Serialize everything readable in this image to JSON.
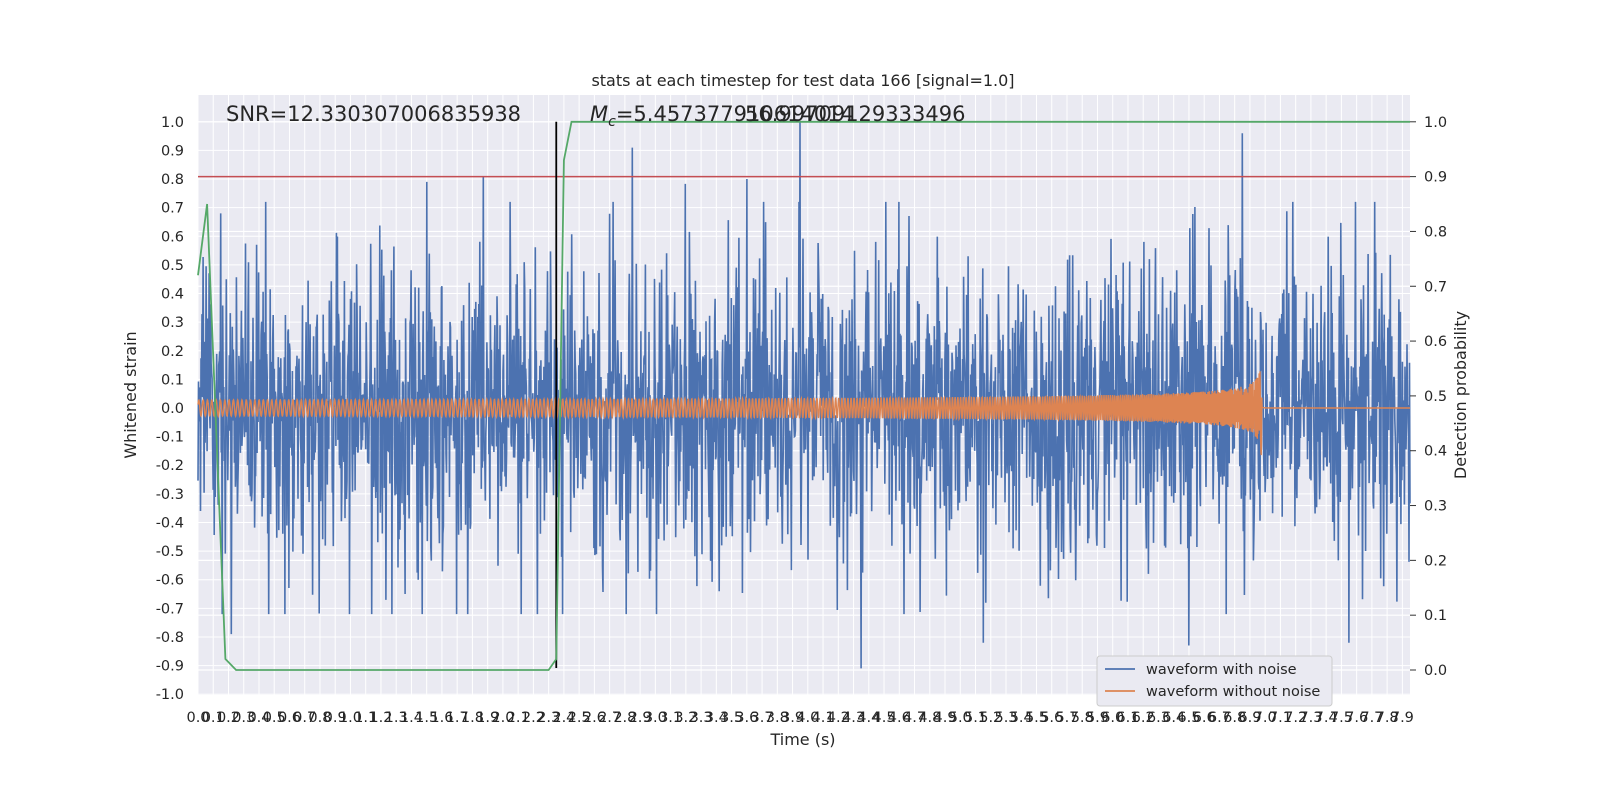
{
  "chart_data": {
    "type": "line",
    "title": "stats at each timestep for test data 166 [signal=1.0]",
    "xlabel": "Time (s)",
    "ylabel_left": "Whitened strain",
    "ylabel_right": "Detection probability",
    "xlim": [
      0.0,
      7.95
    ],
    "ylim_left": [
      -1.0,
      1.0
    ],
    "ylim_right": [
      0.0,
      1.0
    ],
    "x_ticks": [
      "0.0",
      "0.1",
      "0.2",
      "0.3",
      "0.4",
      "0.5",
      "0.6",
      "0.7",
      "0.8",
      "0.9",
      "1.0",
      "1.1",
      "1.2",
      "1.3",
      "1.4",
      "1.5",
      "1.6",
      "1.7",
      "1.8",
      "1.9",
      "2.0",
      "2.1",
      "2.2",
      "2.3",
      "2.4",
      "2.5",
      "2.6",
      "2.7",
      "2.8",
      "2.9",
      "3.0",
      "3.1",
      "3.2",
      "3.3",
      "3.4",
      "3.5",
      "3.6",
      "3.7",
      "3.8",
      "3.9",
      "4.0",
      "4.1",
      "4.2",
      "4.3",
      "4.4",
      "4.5",
      "4.6",
      "4.7",
      "4.8",
      "4.9",
      "5.0",
      "5.1",
      "5.2",
      "5.3",
      "5.4",
      "5.5",
      "5.6",
      "5.7",
      "5.8",
      "5.9",
      "6.0",
      "6.1",
      "6.2",
      "6.3",
      "6.4",
      "6.5",
      "6.6",
      "6.7",
      "6.8",
      "6.9",
      "7.0",
      "7.1",
      "7.2",
      "7.3",
      "7.4",
      "7.5",
      "7.6",
      "7.7",
      "7.8",
      "7.9"
    ],
    "y_ticks_left": [
      "-1.0",
      "-0.9",
      "-0.8",
      "-0.7",
      "-0.6",
      "-0.5",
      "-0.4",
      "-0.3",
      "-0.2",
      "-0.1",
      "0.0",
      "0.1",
      "0.2",
      "0.3",
      "0.4",
      "0.5",
      "0.6",
      "0.7",
      "0.8",
      "0.9",
      "1.0"
    ],
    "y_ticks_right": [
      "0.0",
      "0.1",
      "0.2",
      "0.3",
      "0.4",
      "0.5",
      "0.6",
      "0.7",
      "0.8",
      "0.9",
      "1.0"
    ],
    "annotations": {
      "snr": "SNR=12.330307006835938",
      "mc_symbol": "M",
      "mc_sub": "c",
      "mc_value": "=5.457377910614014",
      "mc_overlap": "56.99709129333496"
    },
    "threshold": {
      "value": 0.9,
      "axis": "right",
      "color": "#c44e52"
    },
    "detection_time": {
      "x": 2.35,
      "color": "#000000"
    },
    "series": [
      {
        "name": "waveform with noise",
        "axis": "left",
        "color": "#4c72b0",
        "noise_sigma": 0.2,
        "visible_peaks": [
          [
            0.15,
            0.68
          ],
          [
            1.5,
            0.79
          ],
          [
            1.87,
            0.81
          ],
          [
            2.85,
            0.91
          ],
          [
            3.6,
            0.8
          ],
          [
            3.95,
            1.0
          ],
          [
            6.85,
            0.96
          ],
          [
            4.35,
            -0.91
          ],
          [
            6.5,
            -0.83
          ],
          [
            0.22,
            -0.79
          ],
          [
            5.15,
            -0.82
          ],
          [
            7.55,
            -0.82
          ]
        ]
      },
      {
        "name": "waveform without noise",
        "axis": "left",
        "color": "#dd8452",
        "amplitude_start": 0.028,
        "amplitude_peak": 0.29,
        "merger_time": 6.98
      },
      {
        "name": "detection probability",
        "axis": "right",
        "color": "#55a868",
        "x": [
          0.0,
          0.06,
          0.18,
          0.25,
          2.3,
          2.35,
          2.4,
          2.45,
          7.95
        ],
        "y": [
          0.72,
          0.85,
          0.02,
          0.0,
          0.0,
          0.02,
          0.93,
          1.0,
          1.0
        ]
      }
    ],
    "legend": {
      "position": "lower-right",
      "entries": [
        "waveform with noise",
        "waveform without noise"
      ]
    }
  }
}
